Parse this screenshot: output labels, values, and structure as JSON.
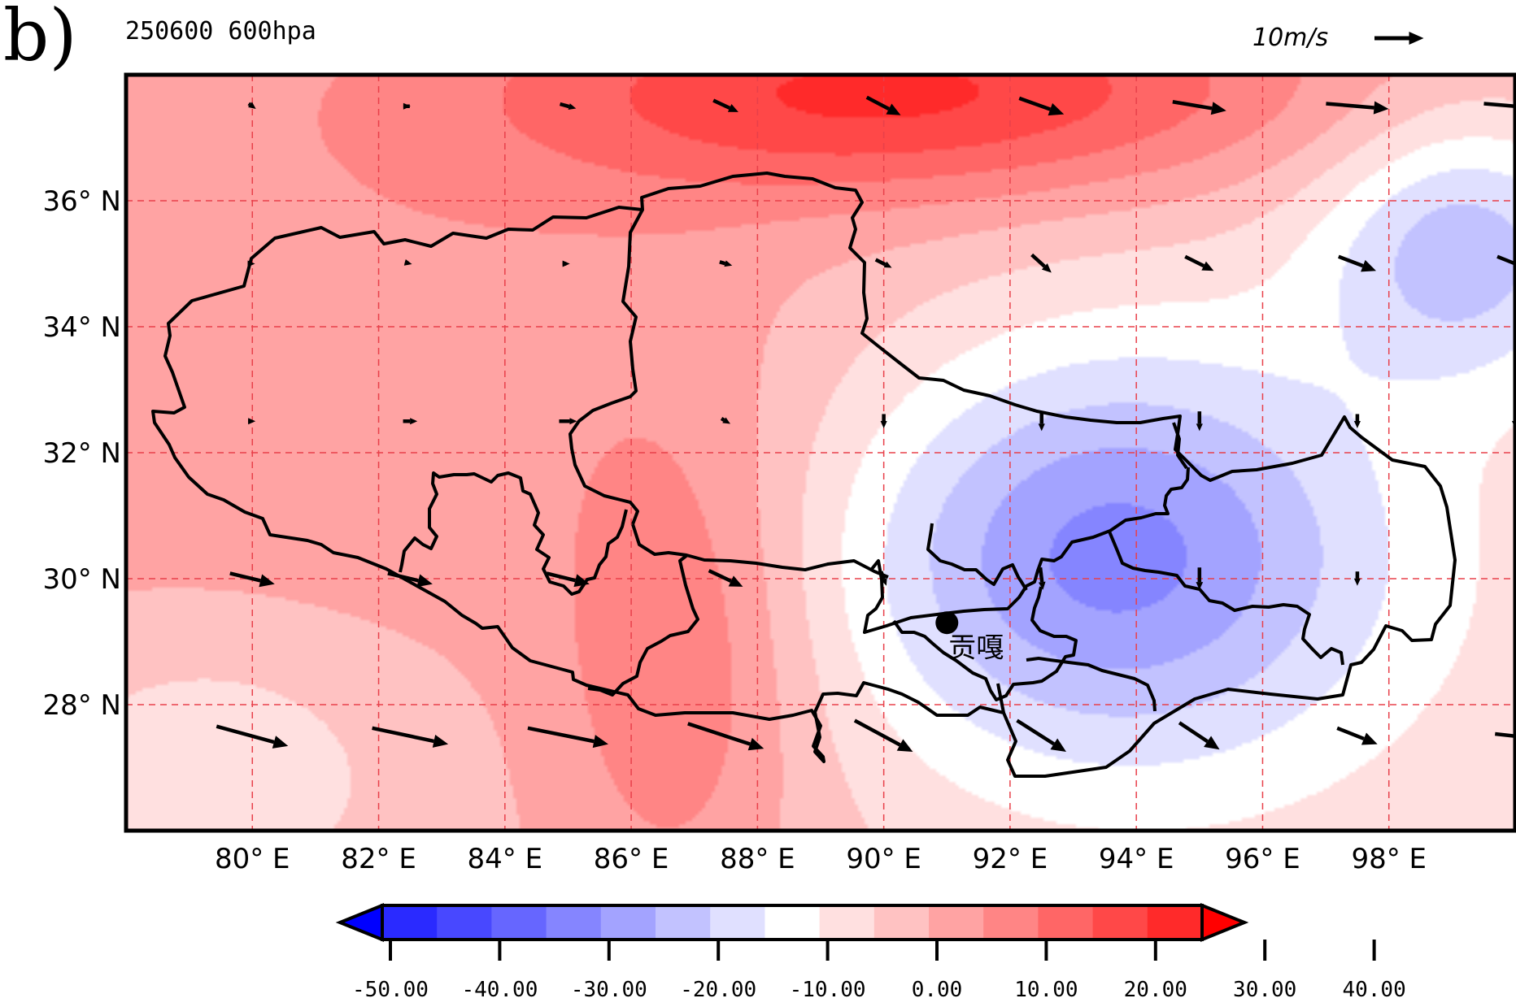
{
  "panel_label": "b)",
  "title": "250600 600hpa",
  "reference_vector": {
    "label": "10m/s",
    "magnitude_ms": 10
  },
  "colorbar": {
    "tick_labels": [
      "-50.00",
      "-40.00",
      "-30.00",
      "-20.00",
      "-10.00",
      "0.00",
      "10.00",
      "20.00",
      "30.00",
      "40.00"
    ],
    "colors": [
      "#0000ff",
      "#2a2aff",
      "#4848ff",
      "#6666ff",
      "#8585ff",
      "#a3a3ff",
      "#c2c2ff",
      "#e0e0ff",
      "#ffffff",
      "#ffe0e0",
      "#ffc2c2",
      "#ffa3a3",
      "#ff8585",
      "#ff6666",
      "#ff4848",
      "#ff2a2a",
      "#ff0000"
    ]
  },
  "chart_data": {
    "type": "map",
    "title": "250600 600hpa",
    "lon_range": [
      78,
      100
    ],
    "lat_range": [
      26,
      38
    ],
    "x_tick_labels": [
      {
        "lon": 80,
        "label": "80° E"
      },
      {
        "lon": 82,
        "label": "82° E"
      },
      {
        "lon": 84,
        "label": "84° E"
      },
      {
        "lon": 86,
        "label": "86° E"
      },
      {
        "lon": 88,
        "label": "88° E"
      },
      {
        "lon": 90,
        "label": "90° E"
      },
      {
        "lon": 92,
        "label": "92° E"
      },
      {
        "lon": 94,
        "label": "94° E"
      },
      {
        "lon": 96,
        "label": "96° E"
      },
      {
        "lon": 98,
        "label": "98° E"
      }
    ],
    "y_tick_labels": [
      {
        "lat": 36,
        "label": "36° N"
      },
      {
        "lat": 34,
        "label": "34° N"
      },
      {
        "lat": 32,
        "label": "32° N"
      },
      {
        "lat": 30,
        "label": "30° N"
      },
      {
        "lat": 28,
        "label": "28° N"
      }
    ],
    "color_scale": {
      "min": -50,
      "max": 40,
      "step": 5
    },
    "field_centers": [
      {
        "lon": 90.5,
        "lat": 37.7,
        "value": 22,
        "sx": 4.5,
        "sy": 1.2
      },
      {
        "lon": 86.8,
        "lat": 28.6,
        "value": 11,
        "sx": 1.4,
        "sy": 2.8
      },
      {
        "lon": 83.5,
        "lat": 33.5,
        "value": 5,
        "sx": 6,
        "sy": 4
      },
      {
        "lon": 93.5,
        "lat": 30.4,
        "value": -23,
        "sx": 2.8,
        "sy": 2.2
      },
      {
        "lon": 99.2,
        "lat": 35.3,
        "value": -19,
        "sx": 1.6,
        "sy": 1.5
      },
      {
        "lon": 95,
        "lat": 30,
        "value": -10,
        "sx": 6,
        "sy": 5
      },
      {
        "lon": 79.3,
        "lat": 27,
        "value": -9,
        "sx": 2.3,
        "sy": 1.7
      }
    ],
    "wind_vectors": [
      {
        "lon": 80,
        "lat": 37.5,
        "u": 0.8,
        "v": -0.6
      },
      {
        "lon": 82.5,
        "lat": 37.5,
        "u": 0.1,
        "v": 0
      },
      {
        "lon": 85,
        "lat": 37.5,
        "u": 1.8,
        "v": -0.5
      },
      {
        "lon": 87.5,
        "lat": 37.5,
        "u": 2.8,
        "v": -1.3
      },
      {
        "lon": 90,
        "lat": 37.5,
        "u": 3.8,
        "v": -2.0
      },
      {
        "lon": 92.5,
        "lat": 37.5,
        "u": 5.0,
        "v": -1.8
      },
      {
        "lon": 95,
        "lat": 37.5,
        "u": 6.0,
        "v": -1.0
      },
      {
        "lon": 97.5,
        "lat": 37.5,
        "u": 7.0,
        "v": -0.6
      },
      {
        "lon": 100,
        "lat": 37.5,
        "u": 7.0,
        "v": -0.6
      },
      {
        "lon": 80,
        "lat": 35,
        "u": 0.6,
        "v": 0
      },
      {
        "lon": 82.5,
        "lat": 35,
        "u": 0.4,
        "v": -0.1
      },
      {
        "lon": 85,
        "lat": 35,
        "u": 0.4,
        "v": 0
      },
      {
        "lon": 87.5,
        "lat": 35,
        "u": 1.4,
        "v": -0.4
      },
      {
        "lon": 90,
        "lat": 35,
        "u": 1.8,
        "v": -0.9
      },
      {
        "lon": 92.5,
        "lat": 35,
        "u": 2.2,
        "v": -2.0
      },
      {
        "lon": 95,
        "lat": 35,
        "u": 3.2,
        "v": -1.6
      },
      {
        "lon": 97.5,
        "lat": 35,
        "u": 4.2,
        "v": -1.6
      },
      {
        "lon": 100,
        "lat": 35,
        "u": 4.0,
        "v": -1.6
      },
      {
        "lon": 80,
        "lat": 32.5,
        "u": 0.7,
        "v": 0
      },
      {
        "lon": 82.5,
        "lat": 32.5,
        "u": 1.6,
        "v": 0
      },
      {
        "lon": 85,
        "lat": 32.5,
        "u": 2.0,
        "v": 0
      },
      {
        "lon": 87.5,
        "lat": 32.5,
        "u": 1.0,
        "v": -0.6
      },
      {
        "lon": 90,
        "lat": 32.5,
        "u": 0,
        "v": -1.6
      },
      {
        "lon": 92.5,
        "lat": 32.5,
        "u": 0,
        "v": -2.2
      },
      {
        "lon": 95,
        "lat": 32.5,
        "u": 0,
        "v": -2.2
      },
      {
        "lon": 97.5,
        "lat": 32.5,
        "u": 0,
        "v": -1.6
      },
      {
        "lon": 100,
        "lat": 32.5,
        "u": 0,
        "v": -1.6
      },
      {
        "lon": 80,
        "lat": 30,
        "u": 5.0,
        "v": -1.2
      },
      {
        "lon": 82.5,
        "lat": 30,
        "u": 5.0,
        "v": -1.2
      },
      {
        "lon": 85,
        "lat": 30,
        "u": 4.8,
        "v": -1.2
      },
      {
        "lon": 87.5,
        "lat": 30,
        "u": 3.8,
        "v": -1.8
      },
      {
        "lon": 90,
        "lat": 30,
        "u": 0.6,
        "v": -1.6
      },
      {
        "lon": 92.5,
        "lat": 30,
        "u": 0.3,
        "v": -2.5
      },
      {
        "lon": 95,
        "lat": 30,
        "u": 0,
        "v": -2.5
      },
      {
        "lon": 97.5,
        "lat": 30,
        "u": 0,
        "v": -1.6
      },
      {
        "lon": 80,
        "lat": 27.5,
        "u": 8.0,
        "v": -2.2
      },
      {
        "lon": 82.5,
        "lat": 27.5,
        "u": 8.5,
        "v": -1.8
      },
      {
        "lon": 85,
        "lat": 27.5,
        "u": 9.0,
        "v": -1.8
      },
      {
        "lon": 87.5,
        "lat": 27.5,
        "u": 8.5,
        "v": -2.8
      },
      {
        "lon": 90,
        "lat": 27.5,
        "u": 6.5,
        "v": -3.5
      },
      {
        "lon": 92.5,
        "lat": 27.5,
        "u": 5.5,
        "v": -3.5
      },
      {
        "lon": 95,
        "lat": 27.5,
        "u": 4.5,
        "v": -3.0
      },
      {
        "lon": 97.5,
        "lat": 27.5,
        "u": 4.5,
        "v": -1.8
      },
      {
        "lon": 100,
        "lat": 27.5,
        "u": 4.5,
        "v": -0.5
      }
    ],
    "station": {
      "name": "贡嘎",
      "lon": 91.0,
      "lat": 29.3
    }
  }
}
